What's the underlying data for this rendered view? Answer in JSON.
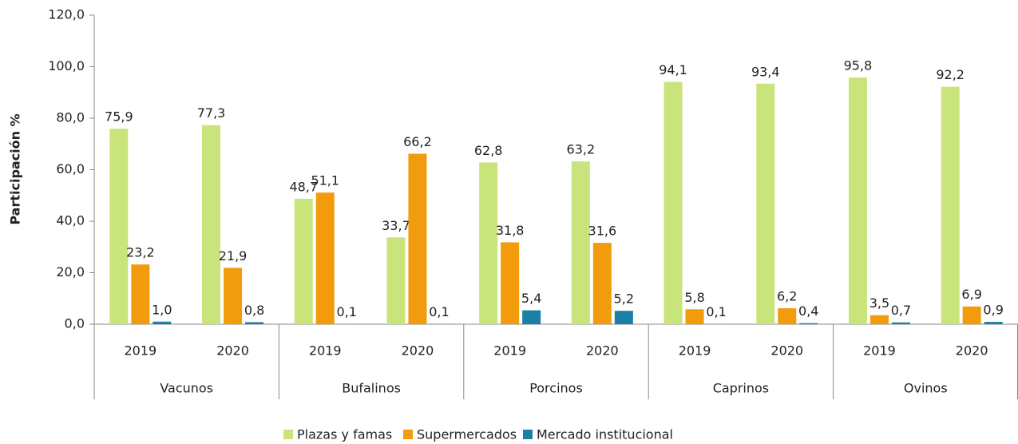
{
  "chart_data": {
    "type": "bar",
    "y_label": "Participación %",
    "categories": [
      "2019",
      "2020",
      "2019",
      "2020",
      "2019",
      "2020",
      "2019",
      "2020",
      "2019",
      "2020"
    ],
    "category_groups": [
      "Vacunos",
      "Bufalinos",
      "Porcinos",
      "Caprinos",
      "Ovinos"
    ],
    "series": [
      {
        "name": "Plazas y famas",
        "color": "#c9e47a",
        "values": [
          75.9,
          77.3,
          48.7,
          33.7,
          62.8,
          63.2,
          94.1,
          93.4,
          95.8,
          92.2
        ],
        "value_labels": [
          "75,9",
          "77,3",
          "48,7",
          "33,7",
          "62,8",
          "63,2",
          "94,1",
          "93,4",
          "95,8",
          "92,2"
        ]
      },
      {
        "name": "Supermercados",
        "color": "#f29b0c",
        "values": [
          23.2,
          21.9,
          51.1,
          66.2,
          31.8,
          31.6,
          5.8,
          6.2,
          3.5,
          6.9
        ],
        "value_labels": [
          "23,2",
          "21,9",
          "51,1",
          "66,2",
          "31,8",
          "31,6",
          "5,8",
          "6,2",
          "3,5",
          "6,9"
        ]
      },
      {
        "name": "Mercado institucional",
        "color": "#1b7fa6",
        "values": [
          1.0,
          0.8,
          0.1,
          0.1,
          5.4,
          5.2,
          0.1,
          0.4,
          0.7,
          0.9
        ],
        "value_labels": [
          "1,0",
          "0,8",
          "0,1",
          "0,1",
          "5,4",
          "5,2",
          "0,1",
          "0,4",
          "0,7",
          "0,9"
        ]
      }
    ],
    "ylim": [
      0,
      120
    ],
    "yticks": [
      {
        "value": 0,
        "label": "0,0"
      },
      {
        "value": 20,
        "label": "20,0"
      },
      {
        "value": 40,
        "label": "40,0"
      },
      {
        "value": 60,
        "label": "60,0"
      },
      {
        "value": 80,
        "label": "80,0"
      },
      {
        "value": 100,
        "label": "100,0"
      },
      {
        "value": 120,
        "label": "120,0"
      }
    ],
    "legend": "bottom"
  }
}
